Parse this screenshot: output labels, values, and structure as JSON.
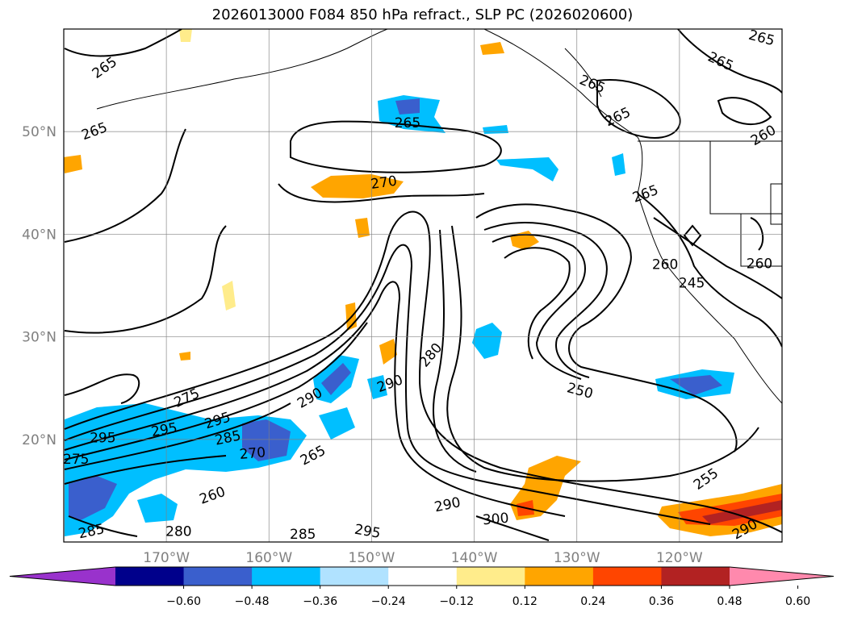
{
  "title": "2026013000 F084 850 hPa refract., SLP PC (2026020600)",
  "map": {
    "lon_range": [
      -180,
      -110
    ],
    "lat_range": [
      10,
      60
    ],
    "lat_ticks": [
      {
        "value": 50,
        "label": "50°N"
      },
      {
        "value": 40,
        "label": "40°N"
      },
      {
        "value": 30,
        "label": "30°N"
      },
      {
        "value": 20,
        "label": "20°N"
      }
    ],
    "lon_ticks": [
      {
        "value": -170,
        "label": "170°W"
      },
      {
        "value": -160,
        "label": "160°W"
      },
      {
        "value": -150,
        "label": "150°W"
      },
      {
        "value": -140,
        "label": "140°W"
      },
      {
        "value": -130,
        "label": "130°W"
      },
      {
        "value": -120,
        "label": "120°W"
      }
    ],
    "grid": true,
    "contour_labels": [
      {
        "text": "265",
        "lon": -176,
        "lat": 56.2,
        "angle": -35
      },
      {
        "text": "265",
        "lon": -177,
        "lat": 50.0,
        "angle": -20
      },
      {
        "text": "265",
        "lon": -146.5,
        "lat": 50.8,
        "angle": 0
      },
      {
        "text": "270",
        "lon": -148.8,
        "lat": 45.0,
        "angle": -8
      },
      {
        "text": "265",
        "lon": -126,
        "lat": 51.4,
        "angle": -25
      },
      {
        "text": "265",
        "lon": -128.5,
        "lat": 54.6,
        "angle": 22
      },
      {
        "text": "265",
        "lon": -116,
        "lat": 56.8,
        "angle": 25
      },
      {
        "text": "265",
        "lon": -112,
        "lat": 59.1,
        "angle": 15
      },
      {
        "text": "260",
        "lon": -111.8,
        "lat": 49.6,
        "angle": -30
      },
      {
        "text": "265",
        "lon": -123.3,
        "lat": 43.9,
        "angle": -20
      },
      {
        "text": "260",
        "lon": -121.4,
        "lat": 37.0,
        "angle": 0
      },
      {
        "text": "260",
        "lon": -112.2,
        "lat": 37.1,
        "angle": 0
      },
      {
        "text": "245",
        "lon": -118.8,
        "lat": 35.2,
        "angle": 0
      },
      {
        "text": "280",
        "lon": -144.2,
        "lat": 28.2,
        "angle": -50
      },
      {
        "text": "290",
        "lon": -148.2,
        "lat": 25.4,
        "angle": -20
      },
      {
        "text": "290",
        "lon": -156.0,
        "lat": 24.0,
        "angle": -30
      },
      {
        "text": "250",
        "lon": -129.7,
        "lat": 24.7,
        "angle": 15
      },
      {
        "text": "275",
        "lon": -168.0,
        "lat": 24.0,
        "angle": -25
      },
      {
        "text": "295",
        "lon": -165.0,
        "lat": 21.8,
        "angle": -18
      },
      {
        "text": "295",
        "lon": -170.2,
        "lat": 20.9,
        "angle": -10
      },
      {
        "text": "295",
        "lon": -176.2,
        "lat": 20.1,
        "angle": 0
      },
      {
        "text": "285",
        "lon": -164.0,
        "lat": 20.1,
        "angle": -12
      },
      {
        "text": "270",
        "lon": -161.6,
        "lat": 18.6,
        "angle": -5
      },
      {
        "text": "265",
        "lon": -155.7,
        "lat": 18.4,
        "angle": -28
      },
      {
        "text": "275",
        "lon": -178.8,
        "lat": 18.0,
        "angle": 0
      },
      {
        "text": "260",
        "lon": -165.5,
        "lat": 14.5,
        "angle": -20
      },
      {
        "text": "290",
        "lon": -142.6,
        "lat": 13.6,
        "angle": -12
      },
      {
        "text": "300",
        "lon": -137.9,
        "lat": 12.2,
        "angle": -5
      },
      {
        "text": "255",
        "lon": -117.4,
        "lat": 16.1,
        "angle": -35
      },
      {
        "text": "290",
        "lon": -113.6,
        "lat": 11.2,
        "angle": -30
      },
      {
        "text": "285",
        "lon": -177.3,
        "lat": 11.0,
        "angle": -12
      },
      {
        "text": "280",
        "lon": -168.8,
        "lat": 11.0,
        "angle": 0
      },
      {
        "text": "285",
        "lon": -156.7,
        "lat": 10.7,
        "angle": 0
      },
      {
        "text": "295",
        "lon": -150.4,
        "lat": 11.0,
        "angle": 10
      }
    ]
  },
  "colorbar": {
    "colors": [
      "#9932cc",
      "#00008b",
      "#3a5fcd",
      "#00bfff",
      "#b0e2ff",
      "#ffffff",
      "#ffec8b",
      "#ffa500",
      "#ff4500",
      "#b22222",
      "#ff89ad"
    ],
    "tick_labels": [
      "−0.60",
      "−0.48",
      "−0.36",
      "−0.24",
      "−0.12",
      "0.12",
      "0.24",
      "0.36",
      "0.48",
      "0.60"
    ]
  }
}
